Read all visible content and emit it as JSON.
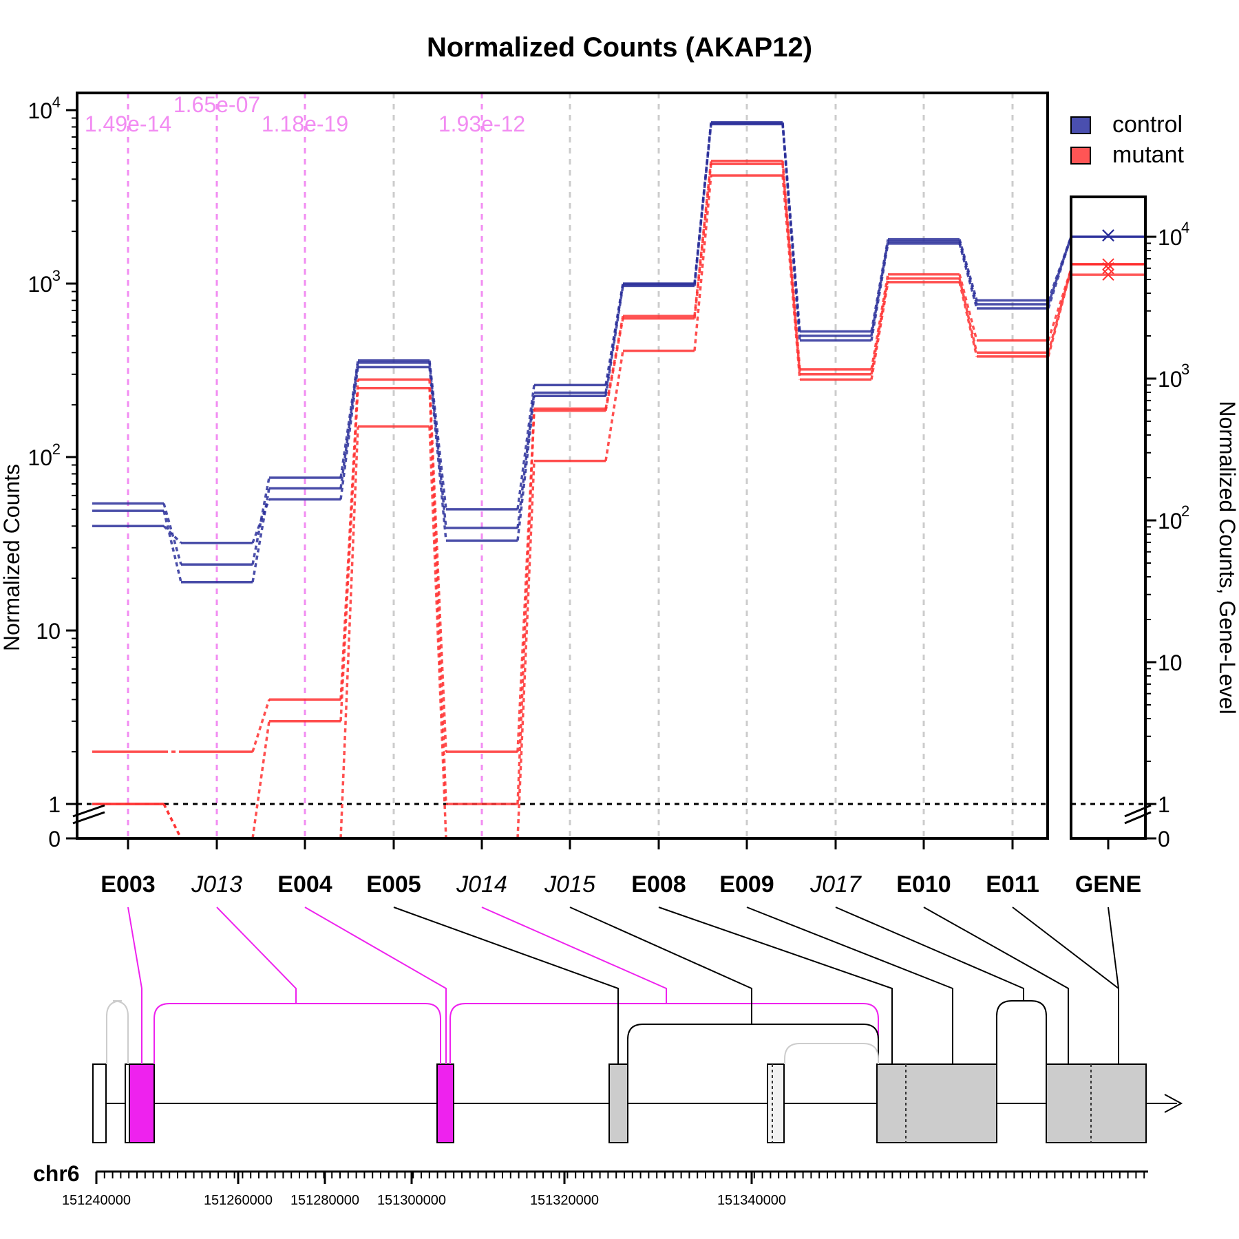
{
  "chart_data": {
    "type": "line",
    "title": "Normalized Counts (AKAP12)",
    "ylabel": "Normalized Counts",
    "ylabel_right": "Normalized Counts, Gene-Level",
    "y_scale": "log-like (0 and 1 at bottom, broken axis)",
    "y_ticks": [
      {
        "label": "0",
        "sup": ""
      },
      {
        "label": "1",
        "sup": ""
      },
      {
        "label": "10",
        "sup": ""
      },
      {
        "label": "10",
        "sup": "2"
      },
      {
        "label": "10",
        "sup": "3"
      },
      {
        "label": "10",
        "sup": "4"
      }
    ],
    "legend": {
      "position": "top-right",
      "items": [
        {
          "label": "control",
          "color": "#4A4FAF"
        },
        {
          "label": "mutant",
          "color": "#FF5555"
        }
      ]
    },
    "features": [
      {
        "id": "E003",
        "italic": false,
        "pvalue": "1.49e-14",
        "significant": true
      },
      {
        "id": "J013",
        "italic": true,
        "pvalue": "1.65e-07",
        "significant": true
      },
      {
        "id": "E004",
        "italic": false,
        "pvalue": "1.18e-19",
        "significant": true
      },
      {
        "id": "E005",
        "italic": false,
        "pvalue": "",
        "significant": false
      },
      {
        "id": "J014",
        "italic": true,
        "pvalue": "1.93e-12",
        "significant": true
      },
      {
        "id": "J015",
        "italic": true,
        "pvalue": "",
        "significant": false
      },
      {
        "id": "E008",
        "italic": false,
        "pvalue": "",
        "significant": false
      },
      {
        "id": "E009",
        "italic": false,
        "pvalue": "",
        "significant": false
      },
      {
        "id": "J017",
        "italic": true,
        "pvalue": "",
        "significant": false
      },
      {
        "id": "E010",
        "italic": false,
        "pvalue": "",
        "significant": false
      },
      {
        "id": "E011",
        "italic": false,
        "pvalue": "",
        "significant": false
      }
    ],
    "series": [
      {
        "name": "control",
        "color": "#2A2F9A",
        "values": [
          [
            54,
            24,
            76,
            360,
            50,
            260,
            1000,
            8500,
            530,
            1800,
            800
          ],
          [
            49,
            19,
            66,
            350,
            39,
            235,
            990,
            8400,
            500,
            1750,
            760
          ],
          [
            40,
            32,
            57,
            330,
            33,
            225,
            970,
            8300,
            470,
            1700,
            720
          ]
        ]
      },
      {
        "name": "mutant",
        "color": "#FF3030",
        "values": [
          [
            2,
            2,
            4,
            280,
            2,
            190,
            650,
            5100,
            320,
            1130,
            470
          ],
          [
            1,
            0,
            3,
            250,
            1,
            185,
            630,
            4900,
            300,
            1070,
            400
          ],
          [
            1,
            0,
            0,
            150,
            0,
            95,
            410,
            4200,
            280,
            1020,
            380
          ]
        ]
      }
    ],
    "gene_level": {
      "label": "GENE",
      "control": [
        10000,
        10000,
        10000
      ],
      "mutant": [
        6400,
        6000,
        5400
      ],
      "control_mean": 10000,
      "mutant_mean": 5900
    },
    "chromosome": "chr6",
    "genomic_ticks": [
      "151240000",
      "151260000",
      "151280000",
      "151300000",
      "151320000",
      "151340000"
    ]
  }
}
